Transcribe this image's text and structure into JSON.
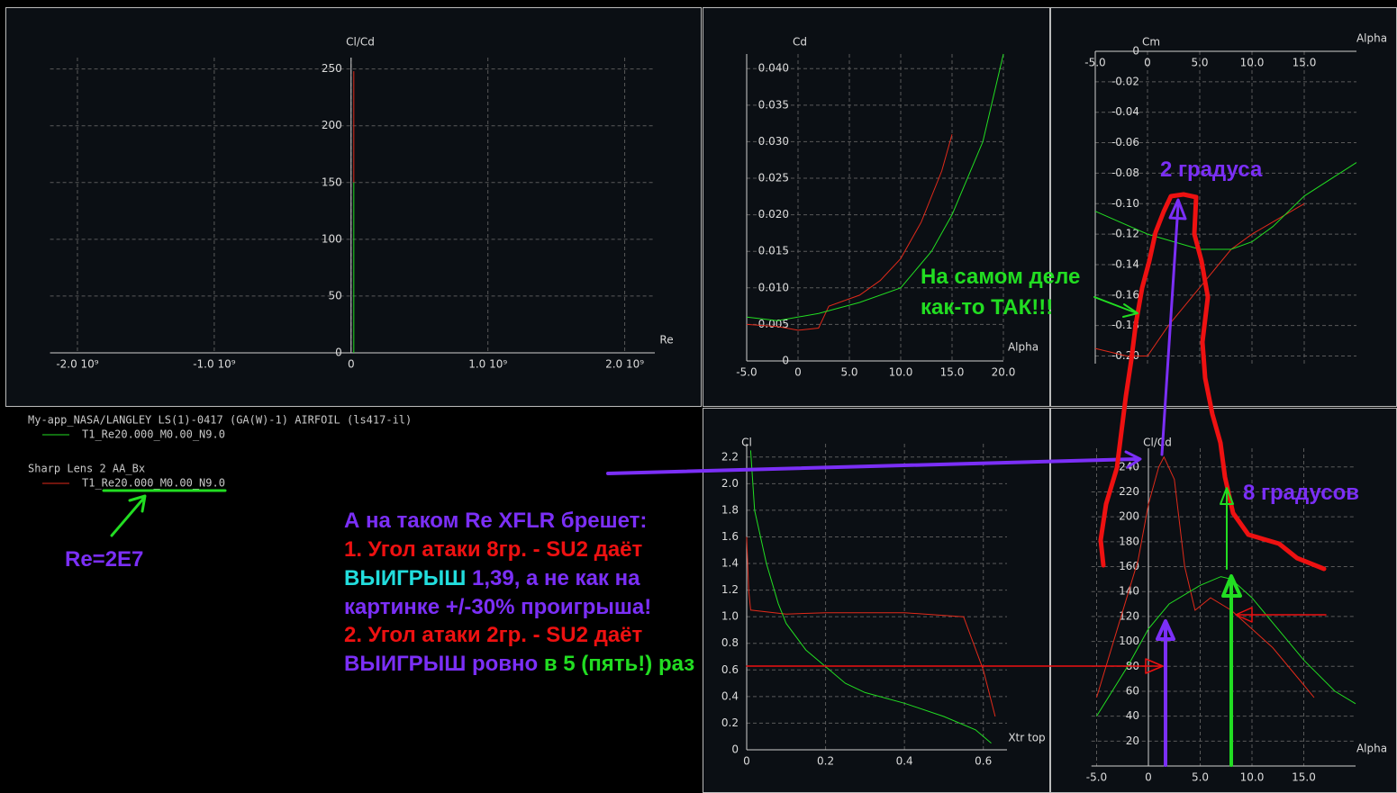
{
  "chart_data": [
    {
      "type": "line",
      "ylabel": "Cl/Cd",
      "xlabel": "Re",
      "grid": true,
      "xlim": [
        -2200000000,
        2220000000
      ],
      "ylim": [
        0,
        260
      ],
      "xticks": [
        {
          "value": -2000000000,
          "label": "-2.0 10⁹"
        },
        {
          "value": -1000000000,
          "label": "-1.0 10⁹"
        },
        0,
        {
          "value": 1000000000,
          "label": "1.0 10⁹"
        },
        {
          "value": 2000000000,
          "label": "2.0 10⁹"
        }
      ],
      "yticks": [
        0,
        50,
        100,
        150,
        200,
        250
      ],
      "series": [
        {
          "color": "#e02a1a",
          "x": [
            20000000,
            20000000
          ],
          "values": [
            150,
            248
          ]
        },
        {
          "color": "#22dd22",
          "x": [
            20000000,
            20000000
          ],
          "values": [
            0,
            150
          ]
        }
      ]
    },
    {
      "type": "line",
      "ylabel": "Cd",
      "xlabel": "Alpha",
      "grid": true,
      "xlim": [
        -5,
        20
      ],
      "ylim": [
        0,
        0.042
      ],
      "xticks": [
        {
          "value": -5,
          "label": "-5.0"
        },
        0,
        {
          "value": 5,
          "label": "5.0"
        },
        {
          "value": 10,
          "label": "10.0"
        },
        {
          "value": 15,
          "label": "15.0"
        },
        {
          "value": 20,
          "label": "20.0"
        }
      ],
      "yticks": [
        0,
        0.005,
        {
          "value": 0.01,
          "label": "0.010"
        },
        0.015,
        {
          "value": 0.02,
          "label": "0.020"
        },
        0.025,
        {
          "value": 0.03,
          "label": "0.030"
        },
        0.035,
        {
          "value": 0.04,
          "label": "0.040"
        }
      ],
      "series": [
        {
          "color": "#e02a1a",
          "x": [
            -5,
            -2,
            0,
            2,
            3,
            6,
            8,
            10,
            12,
            14,
            15
          ],
          "values": [
            0.005,
            0.0047,
            0.0042,
            0.0045,
            0.0075,
            0.009,
            0.011,
            0.014,
            0.019,
            0.026,
            0.031
          ]
        },
        {
          "color": "#22dd22",
          "x": [
            -5,
            -2,
            2,
            6,
            10,
            13,
            15,
            18,
            20
          ],
          "values": [
            0.006,
            0.0055,
            0.0065,
            0.008,
            0.01,
            0.015,
            0.02,
            0.03,
            0.042
          ]
        }
      ]
    },
    {
      "type": "line",
      "ylabel": "Cm",
      "xlabel": "Alpha",
      "grid": true,
      "xlim": [
        -5,
        20
      ],
      "ylim": [
        -0.205,
        0
      ],
      "xticks": [
        {
          "value": -5,
          "label": "-5.0"
        },
        0,
        {
          "value": 5,
          "label": "5.0"
        },
        {
          "value": 10,
          "label": "10.0"
        },
        {
          "value": 15,
          "label": "15.0"
        }
      ],
      "yticks": [
        0,
        -0.02,
        -0.04,
        -0.06,
        -0.08,
        {
          "value": -0.1,
          "label": "-0.10"
        },
        -0.12,
        -0.14,
        -0.16,
        -0.18,
        {
          "value": -0.2,
          "label": "-0.20"
        }
      ],
      "series": [
        {
          "color": "#e02a1a",
          "x": [
            -5,
            -2,
            0,
            2,
            5,
            8,
            10,
            15
          ],
          "values": [
            -0.195,
            -0.2,
            -0.2,
            -0.18,
            -0.155,
            -0.13,
            -0.12,
            -0.1
          ]
        },
        {
          "color": "#22dd22",
          "x": [
            -5,
            0,
            5,
            8,
            10,
            12,
            15,
            20
          ],
          "values": [
            -0.105,
            -0.12,
            -0.13,
            -0.13,
            -0.125,
            -0.115,
            -0.095,
            -0.073
          ]
        }
      ]
    },
    {
      "type": "line",
      "ylabel": "Cl",
      "xlabel": "Xtr top",
      "grid": true,
      "xlim": [
        0,
        0.66
      ],
      "ylim": [
        0,
        2.3
      ],
      "xticks": [
        0,
        0.2,
        0.4,
        0.6
      ],
      "yticks": [
        0,
        0.2,
        0.4,
        0.6,
        0.8,
        {
          "value": 1,
          "label": "1.0"
        },
        1.2,
        1.4,
        1.6,
        1.8,
        {
          "value": 2,
          "label": "2.0"
        },
        2.2
      ],
      "series": [
        {
          "color": "#e02a1a",
          "x": [
            0,
            0.005,
            0.01,
            0.1,
            0.2,
            0.4,
            0.55,
            0.6,
            0.63
          ],
          "values": [
            1.6,
            1.2,
            1.05,
            1.02,
            1.03,
            1.03,
            1.0,
            0.6,
            0.25
          ]
        },
        {
          "color": "#22dd22",
          "x": [
            0.01,
            0.02,
            0.05,
            0.08,
            0.1,
            0.15,
            0.25,
            0.3,
            0.4,
            0.5,
            0.58,
            0.62
          ],
          "values": [
            2.25,
            1.8,
            1.4,
            1.1,
            0.95,
            0.75,
            0.5,
            0.43,
            0.35,
            0.25,
            0.15,
            0.05
          ]
        }
      ]
    },
    {
      "type": "line",
      "ylabel": "Cl/Cd",
      "xlabel": "Alpha",
      "grid": true,
      "xlim": [
        -5.5,
        20
      ],
      "ylim": [
        0,
        255
      ],
      "xticks": [
        {
          "value": -5,
          "label": "-5.0"
        },
        0,
        {
          "value": 5,
          "label": "5.0"
        },
        {
          "value": 10,
          "label": "10.0"
        },
        {
          "value": 15,
          "label": "15.0"
        }
      ],
      "yticks": [
        20,
        40,
        60,
        80,
        100,
        120,
        140,
        160,
        180,
        200,
        220,
        240
      ],
      "series": [
        {
          "color": "#e02a1a",
          "x": [
            -5,
            -3,
            -1,
            0,
            1,
            1.5,
            2.5,
            3.5,
            4.5,
            6,
            8,
            10,
            12,
            15,
            16
          ],
          "values": [
            55,
            110,
            165,
            210,
            240,
            248,
            230,
            160,
            125,
            135,
            125,
            110,
            95,
            65,
            55
          ]
        },
        {
          "color": "#22dd22",
          "x": [
            -5,
            -2,
            0,
            2,
            5,
            7,
            8,
            10,
            12,
            15,
            18,
            20
          ],
          "values": [
            40,
            80,
            110,
            130,
            145,
            152,
            150,
            135,
            115,
            85,
            60,
            50
          ]
        }
      ]
    }
  ],
  "legend": [
    {
      "title": "My-app_NASA/LANGLEY LS(1)-0417 (GA(W)-1) AIRFOIL (ls417-il)",
      "entry": "T1_Re20.000_M0.00_N9.0",
      "color": "#22dd22"
    },
    {
      "title": "Sharp Lens 2 AA_Bx",
      "entry": "T1_Re20.000_M0.00_N9.0",
      "color": "#e02a1a"
    }
  ],
  "annotations": [
    [
      {
        "text": "2 градуса",
        "color": "#7b2ff7"
      }
    ],
    [
      {
        "text": "На самом деле",
        "color": "#22dd22"
      }
    ],
    [
      {
        "text": "как-то ТАК!!!",
        "color": "#22dd22"
      }
    ],
    [
      {
        "text": "8 градусов",
        "color": "#7b2ff7"
      }
    ],
    [
      {
        "text": "Re=2E7",
        "color": "#7b2ff7"
      }
    ],
    [
      {
        "text": "А на таком Re XFLR брешет:",
        "color": "#7b2ff7"
      }
    ],
    [
      {
        "text": "1. Угол атаки 8гр. - SU2 даёт",
        "color": "#ee1111"
      }
    ],
    [
      {
        "text": "ВЫИГРЫШ",
        "color": "#22dddd"
      },
      {
        "text": " 1,39, а не как на",
        "color": "#7b2ff7"
      }
    ],
    [
      {
        "text": "картинке +/-30% проигрыша!",
        "color": "#7b2ff7"
      }
    ],
    [
      {
        "text": "2. Угол атаки 2гр. - SU2 даёт",
        "color": "#ee1111"
      }
    ],
    [
      {
        "text": "ВЫИГРЫШ ровно",
        "color": "#7b2ff7"
      },
      {
        "text": " в 5 (пять!) раз",
        "color": "#22dd22"
      }
    ]
  ]
}
